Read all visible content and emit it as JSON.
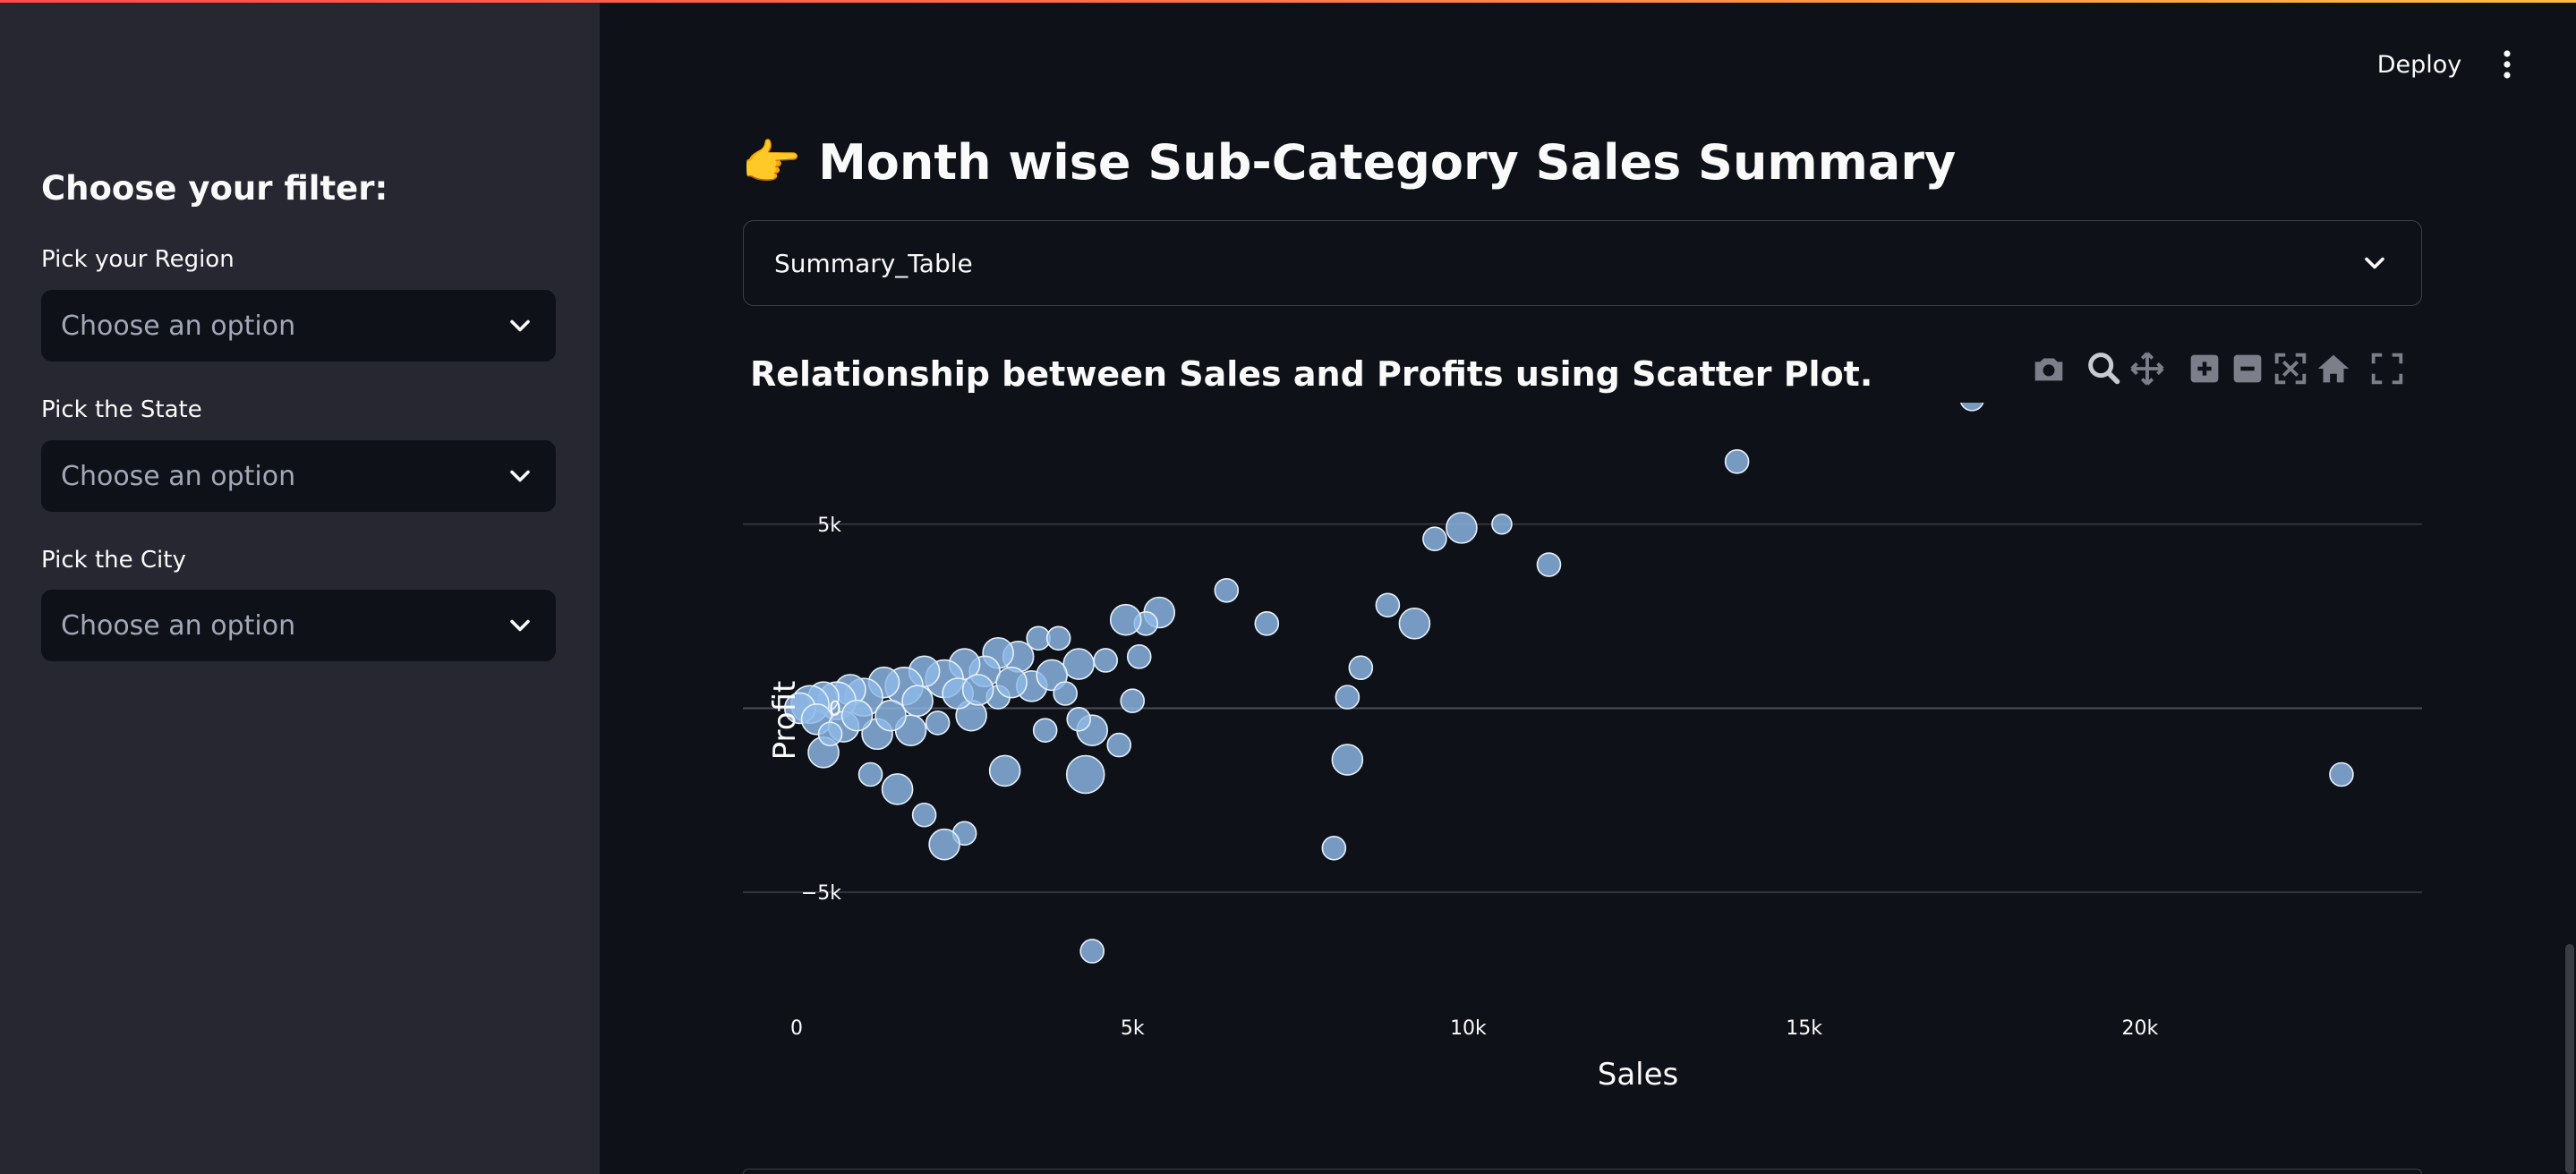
{
  "sidebar": {
    "heading": "Choose your filter:",
    "filters": [
      {
        "label": "Pick your Region",
        "placeholder": "Choose an option"
      },
      {
        "label": "Pick the State",
        "placeholder": "Choose an option"
      },
      {
        "label": "Pick the City",
        "placeholder": "Choose an option"
      }
    ]
  },
  "header": {
    "deploy_label": "Deploy"
  },
  "main": {
    "title_emoji": "👉",
    "title": "Month wise Sub-Category Sales Summary",
    "expander_label": "Summary_Table",
    "chart_title": "Relationship between Sales and Profits using Scatter Plot."
  },
  "modebar": {
    "icons": [
      "camera-icon",
      "zoom-icon",
      "pan-icon",
      "zoom-in-icon",
      "zoom-out-icon",
      "autoscale-icon",
      "home-icon",
      "fullscreen-icon"
    ]
  },
  "colors": {
    "accent": "#ff4b4b",
    "marker_fill": "#8db8e6",
    "background": "#0e1117",
    "sidebar": "#262730"
  },
  "chart_data": {
    "type": "scatter",
    "title": "",
    "xlabel": "Sales",
    "ylabel": "Profit",
    "xlim": [
      -800,
      24200
    ],
    "ylim": [
      -7500,
      8300
    ],
    "x_ticks": [
      0,
      5000,
      10000,
      15000,
      20000
    ],
    "x_tick_labels": [
      "0",
      "5k",
      "10k",
      "15k",
      "20k"
    ],
    "y_ticks": [
      -5000,
      0,
      5000
    ],
    "y_tick_labels": [
      "−5k",
      "0",
      "5k"
    ],
    "grid": "horizontal",
    "marker_size_encoding": "bubble size varies",
    "points": [
      {
        "x": 17500,
        "y": 8400,
        "s": 1
      },
      {
        "x": 14000,
        "y": 6700,
        "s": 1
      },
      {
        "x": 9900,
        "y": 4900,
        "s": 2
      },
      {
        "x": 9500,
        "y": 4600,
        "s": 1
      },
      {
        "x": 10500,
        "y": 5000,
        "s": 0
      },
      {
        "x": 11200,
        "y": 3900,
        "s": 1
      },
      {
        "x": 6400,
        "y": 3200,
        "s": 1
      },
      {
        "x": 7000,
        "y": 2300,
        "s": 1
      },
      {
        "x": 8800,
        "y": 2800,
        "s": 1
      },
      {
        "x": 9200,
        "y": 2300,
        "s": 2
      },
      {
        "x": 5400,
        "y": 2600,
        "s": 2
      },
      {
        "x": 5200,
        "y": 2300,
        "s": 1
      },
      {
        "x": 4900,
        "y": 2400,
        "s": 2
      },
      {
        "x": 5100,
        "y": 1400,
        "s": 1
      },
      {
        "x": 8400,
        "y": 1100,
        "s": 1
      },
      {
        "x": 8200,
        "y": 300,
        "s": 1
      },
      {
        "x": 8200,
        "y": -1400,
        "s": 2
      },
      {
        "x": 8000,
        "y": -3800,
        "s": 1
      },
      {
        "x": 23000,
        "y": -1800,
        "s": 1
      },
      {
        "x": 4400,
        "y": -6600,
        "s": 1
      },
      {
        "x": 4300,
        "y": -1800,
        "s": 3
      },
      {
        "x": 4400,
        "y": -600,
        "s": 2
      },
      {
        "x": 4800,
        "y": -1000,
        "s": 1
      },
      {
        "x": 5000,
        "y": 200,
        "s": 1
      },
      {
        "x": 3100,
        "y": -1700,
        "s": 2
      },
      {
        "x": 2500,
        "y": -3400,
        "s": 1
      },
      {
        "x": 2200,
        "y": -3700,
        "s": 2
      },
      {
        "x": 1900,
        "y": -2900,
        "s": 1
      },
      {
        "x": 1500,
        "y": -2200,
        "s": 2
      },
      {
        "x": 1100,
        "y": -1800,
        "s": 1
      },
      {
        "x": 400,
        "y": -1200,
        "s": 2
      },
      {
        "x": 3600,
        "y": 1900,
        "s": 1
      },
      {
        "x": 3900,
        "y": 1900,
        "s": 1
      },
      {
        "x": 4200,
        "y": 1200,
        "s": 2
      },
      {
        "x": 4600,
        "y": 1300,
        "s": 1
      },
      {
        "x": 3500,
        "y": 600,
        "s": 2
      },
      {
        "x": 3800,
        "y": 900,
        "s": 2
      },
      {
        "x": 4000,
        "y": 400,
        "s": 1
      },
      {
        "x": 4200,
        "y": -300,
        "s": 1
      },
      {
        "x": 3700,
        "y": -600,
        "s": 1
      },
      {
        "x": 3300,
        "y": 1400,
        "s": 2
      },
      {
        "x": 3000,
        "y": 1500,
        "s": 2
      },
      {
        "x": 2800,
        "y": 1000,
        "s": 2
      },
      {
        "x": 2500,
        "y": 1200,
        "s": 2
      },
      {
        "x": 2200,
        "y": 800,
        "s": 3
      },
      {
        "x": 1900,
        "y": 1000,
        "s": 2
      },
      {
        "x": 1600,
        "y": 600,
        "s": 3
      },
      {
        "x": 1300,
        "y": 700,
        "s": 2
      },
      {
        "x": 1000,
        "y": 300,
        "s": 3
      },
      {
        "x": 800,
        "y": 500,
        "s": 2
      },
      {
        "x": 600,
        "y": 200,
        "s": 3
      },
      {
        "x": 400,
        "y": 300,
        "s": 2
      },
      {
        "x": 200,
        "y": 100,
        "s": 3
      },
      {
        "x": 50,
        "y": 0,
        "s": 2
      },
      {
        "x": 300,
        "y": -300,
        "s": 2
      },
      {
        "x": 700,
        "y": -500,
        "s": 2
      },
      {
        "x": 1200,
        "y": -700,
        "s": 2
      },
      {
        "x": 1700,
        "y": -600,
        "s": 2
      },
      {
        "x": 2100,
        "y": -400,
        "s": 1
      },
      {
        "x": 2600,
        "y": -200,
        "s": 2
      },
      {
        "x": 3000,
        "y": 300,
        "s": 1
      },
      {
        "x": 2400,
        "y": 400,
        "s": 2
      },
      {
        "x": 1400,
        "y": -200,
        "s": 2
      },
      {
        "x": 900,
        "y": -200,
        "s": 2
      },
      {
        "x": 500,
        "y": -700,
        "s": 1
      },
      {
        "x": 1800,
        "y": 200,
        "s": 2
      },
      {
        "x": 2700,
        "y": 500,
        "s": 2
      },
      {
        "x": 3200,
        "y": 700,
        "s": 2
      }
    ]
  }
}
